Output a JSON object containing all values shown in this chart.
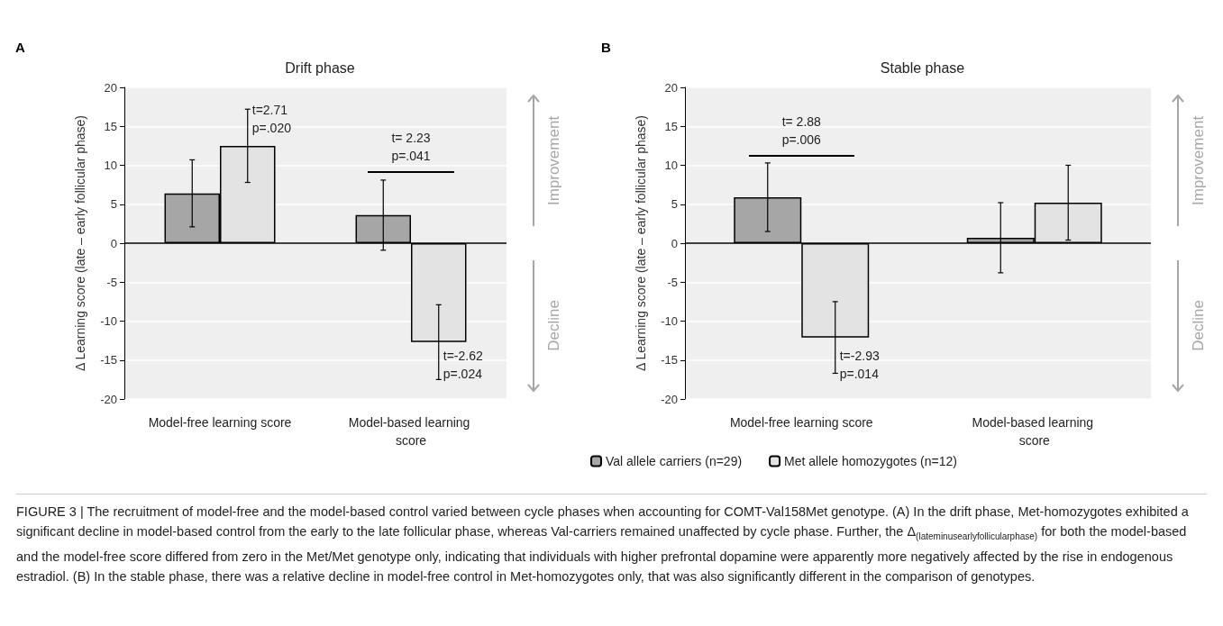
{
  "chart_data": [
    {
      "type": "bar",
      "subtitle": "A",
      "title": "Drift phase",
      "ylabel": "Δ Learning score (late – early follicular phase)",
      "categories": [
        "Model-free learning score",
        "Model-based learning score"
      ],
      "series": [
        {
          "color": "#a6a6a6",
          "values": [
            6.4,
            3.6
          ],
          "errors": [
            4.3,
            4.5
          ]
        },
        {
          "color": "#e3e3e3",
          "values": [
            12.5,
            -12.7
          ],
          "errors": [
            4.7,
            4.8
          ]
        }
      ],
      "ylim": [
        -20,
        20
      ],
      "yticks": [
        -20,
        -15,
        -10,
        -5,
        0,
        5,
        10,
        15,
        20
      ],
      "grid": "y",
      "legend": false,
      "annotations": [
        "Improvement",
        "Decline",
        "t=2.71\np=.020",
        "t= 2.23\np=.041",
        "t=-2.62\np=.024"
      ]
    },
    {
      "type": "bar",
      "subtitle": "B",
      "title": "Stable phase",
      "ylabel": "Δ Learning score (late – early follicular phase)",
      "categories": [
        "Model-free learning score",
        "Model-based learning score"
      ],
      "series": [
        {
          "name": "Val allele carriers (n=29)",
          "color": "#a6a6a6",
          "values": [
            5.9,
            0.7
          ],
          "errors": [
            4.4,
            4.5
          ]
        },
        {
          "name": "Met allele homozygotes (n=12)",
          "color": "#e3e3e3",
          "values": [
            -12.1,
            5.2
          ],
          "errors": [
            4.6,
            4.8
          ]
        }
      ],
      "ylim": [
        -20,
        20
      ],
      "yticks": [
        -20,
        -15,
        -10,
        -5,
        0,
        5,
        10,
        15,
        20
      ],
      "grid": "y",
      "legend": "bottom",
      "annotations": [
        "Improvement",
        "Decline",
        "t= 2.88\np=.006",
        "t=-2.93\np=.014",
        "FIGURE 3 | The recruitment of model-free and the model-based control varied between cycle phases when accounting for COMT-Val158Met genotype. (A) In the drift phase, Met-homozygotes exhibited a significant decline in model-based control from the early to the late follicular phase, whereas Val-carriers remained unaffected by cycle phase. Further, the Δ$_{(lateminusearlyfollicularphase)}$ for both the model-based and the model-free score differed from zero in the Met/Met genotype only, indicating that individuals with higher prefrontal dopamine were apparently more negatively affected by the rise in endogenous estradiol. (B) In the stable phase, there was a relative decline in model-free control in Met-homozygotes only, that was also significantly different in the comparison of genotypes."
      ]
    }
  ]
}
